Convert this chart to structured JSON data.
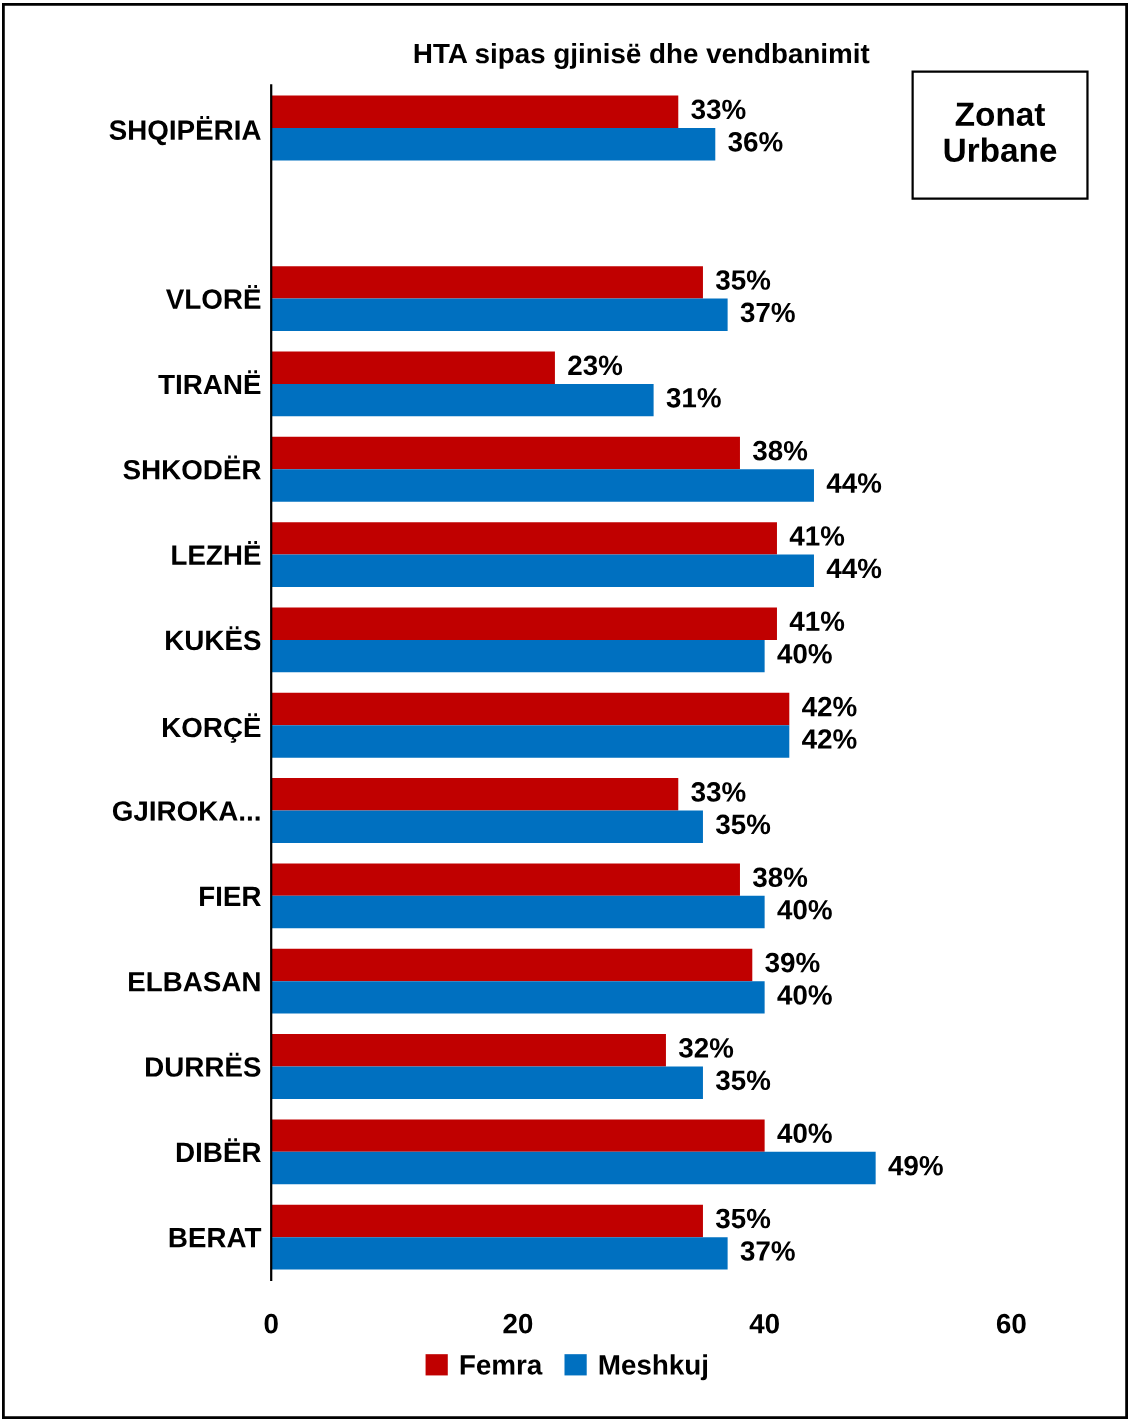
{
  "chart_data": {
    "type": "bar",
    "orientation": "horizontal",
    "title": "HTA sipas gjinisë dhe vendbanimit",
    "categories": [
      "SHQIPËRIA",
      null,
      "VLORË",
      "TIRANË",
      "SHKODËR",
      "LEZHË",
      "KUKËS",
      "KORÇË",
      "GJIROKA...",
      "FIER",
      "ELBASAN",
      "DURRËS",
      "DIBËR",
      "BERAT"
    ],
    "series": [
      {
        "name": "Femra",
        "color": "#c00000",
        "values": [
          33,
          null,
          35,
          23,
          38,
          41,
          41,
          42,
          33,
          38,
          39,
          32,
          40,
          35
        ],
        "value_labels": [
          "33%",
          null,
          "35%",
          "23%",
          "38%",
          "41%",
          "41%",
          "42%",
          "33%",
          "38%",
          "39%",
          "32%",
          "40%",
          "35%"
        ]
      },
      {
        "name": "Meshkuj",
        "color": "#0070c0",
        "values": [
          36,
          null,
          37,
          31,
          44,
          44,
          40,
          42,
          35,
          40,
          40,
          35,
          49,
          37
        ],
        "value_labels": [
          "36%",
          null,
          "37%",
          "31%",
          "44%",
          "44%",
          "40%",
          "42%",
          "35%",
          "40%",
          "40%",
          "35%",
          "49%",
          "37%"
        ]
      }
    ],
    "xlim": [
      0,
      60
    ],
    "xticks": [
      0,
      20,
      40,
      60
    ],
    "grid": false,
    "legend": "bottom",
    "annotations": [
      "Zonat\nUrbane"
    ]
  }
}
